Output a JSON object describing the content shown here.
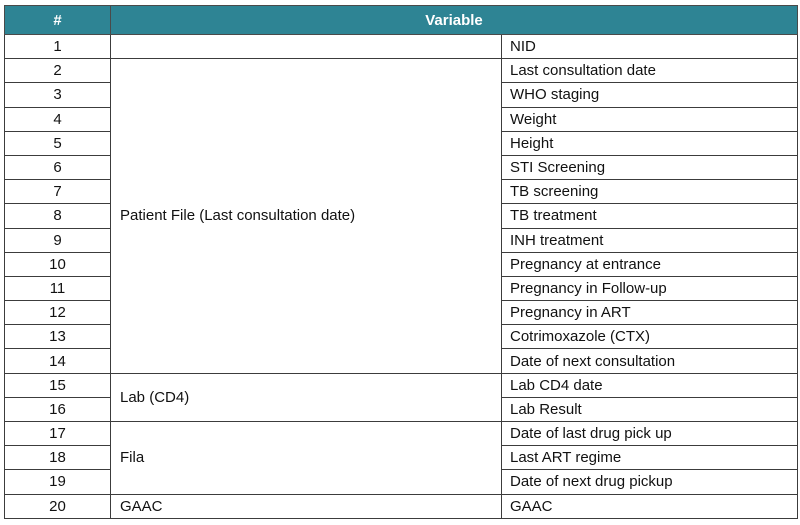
{
  "header": {
    "num": "#",
    "variable": "Variable"
  },
  "groups": {
    "g1": "",
    "g2": "Patient File (Last consultation date)",
    "g3": "Lab (CD4)",
    "g4": "Fila",
    "g5": "GAAC"
  },
  "rows": [
    {
      "num": "1",
      "variable": "NID"
    },
    {
      "num": "2",
      "variable": "Last consultation date"
    },
    {
      "num": "3",
      "variable": "WHO staging"
    },
    {
      "num": "4",
      "variable": "Weight"
    },
    {
      "num": "5",
      "variable": "Height"
    },
    {
      "num": "6",
      "variable": "STI Screening"
    },
    {
      "num": "7",
      "variable": "TB screening"
    },
    {
      "num": "8",
      "variable": "TB treatment"
    },
    {
      "num": "9",
      "variable": "INH treatment"
    },
    {
      "num": "10",
      "variable": "Pregnancy at entrance"
    },
    {
      "num": "11",
      "variable": "Pregnancy in Follow-up"
    },
    {
      "num": "12",
      "variable": "Pregnancy in ART"
    },
    {
      "num": "13",
      "variable": "Cotrimoxazole (CTX)"
    },
    {
      "num": "14",
      "variable": "Date of next consultation"
    },
    {
      "num": "15",
      "variable": "Lab CD4 date"
    },
    {
      "num": "16",
      "variable": "Lab Result"
    },
    {
      "num": "17",
      "variable": "Date of last drug pick up"
    },
    {
      "num": "18",
      "variable": "Last ART regime"
    },
    {
      "num": "19",
      "variable": "Date of next drug pickup"
    },
    {
      "num": "20",
      "variable": "GAAC"
    }
  ],
  "colors": {
    "header_bg": "#2e8494",
    "header_text": "#ffffff",
    "border": "#3c3c3c"
  }
}
